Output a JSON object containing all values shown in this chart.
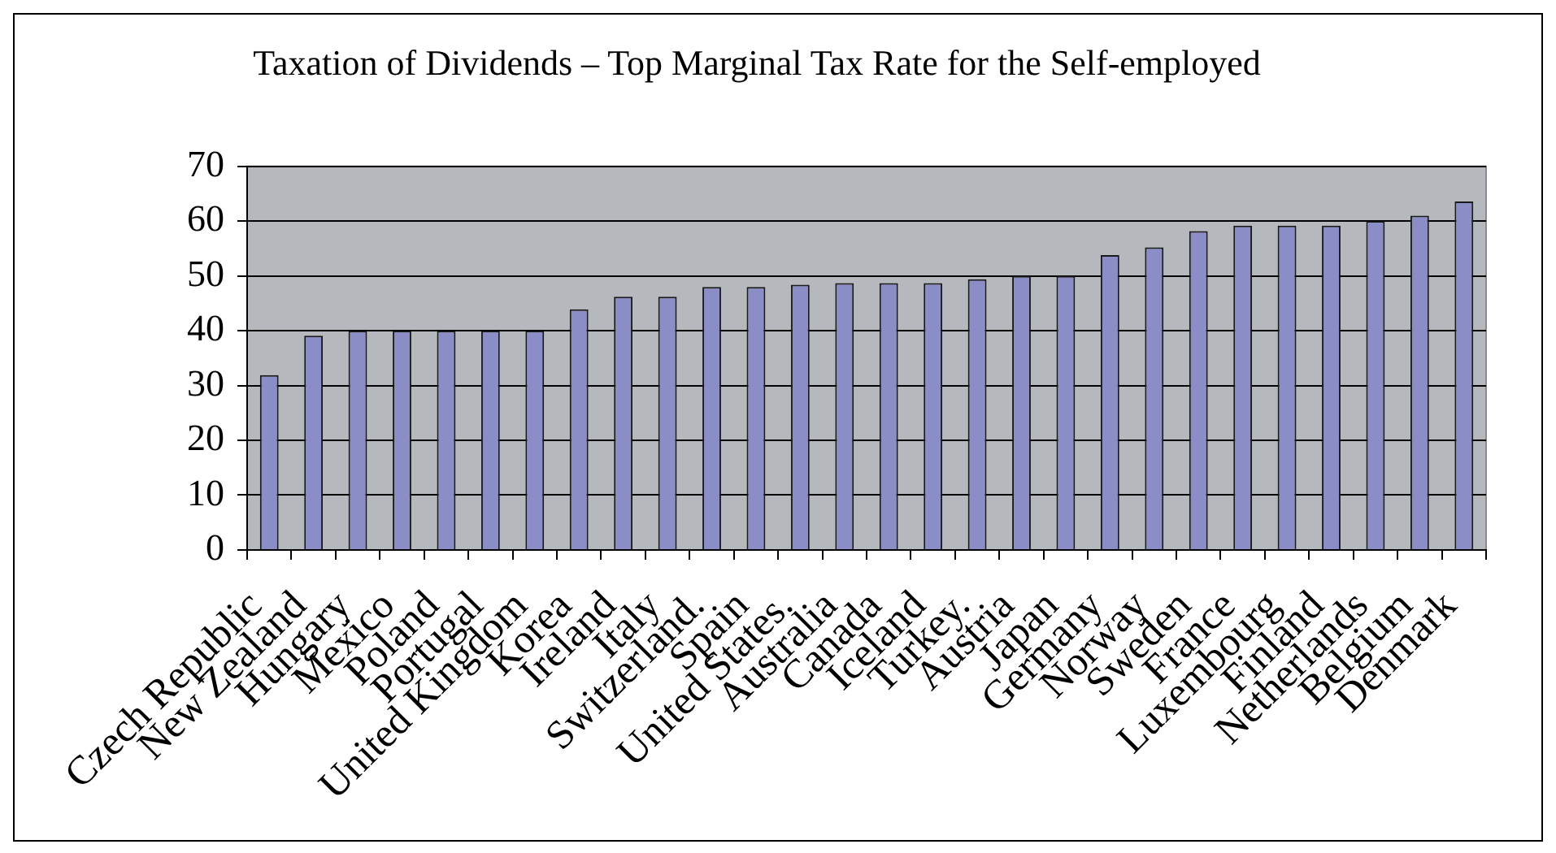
{
  "chart_data": {
    "type": "bar",
    "title": "Taxation of Dividends – Top Marginal Tax Rate for the Self-employed",
    "categories": [
      "Czech Republic",
      "New Zealand",
      "Hungary",
      "Mexico",
      "Poland",
      "Portugal",
      "United Kingdom",
      "Korea",
      "Ireland",
      "Italy",
      "Switzerland.",
      "Spain",
      "United States.",
      "Australia",
      "Canada",
      "Iceland",
      "Turkey.",
      "Austria",
      "Japan",
      "Germany",
      "Norway",
      "Sweden",
      "France",
      "Luxembourg",
      "Finland",
      "Netherlands",
      "Belgium",
      "Denmark"
    ],
    "values": [
      31.9,
      39.1,
      40,
      40,
      40,
      40,
      40,
      43.9,
      46.2,
      46.2,
      48,
      48,
      48.4,
      48.7,
      48.7,
      48.7,
      49.4,
      50,
      50,
      53.8,
      55.2,
      58.2,
      59.2,
      59.2,
      59.2,
      60,
      61,
      63.6
    ],
    "color": "#8b8dc7",
    "ylim": [
      0,
      70
    ],
    "yticks": [
      0,
      10,
      20,
      30,
      40,
      50,
      60,
      70
    ],
    "grid": "y",
    "legend": false
  }
}
